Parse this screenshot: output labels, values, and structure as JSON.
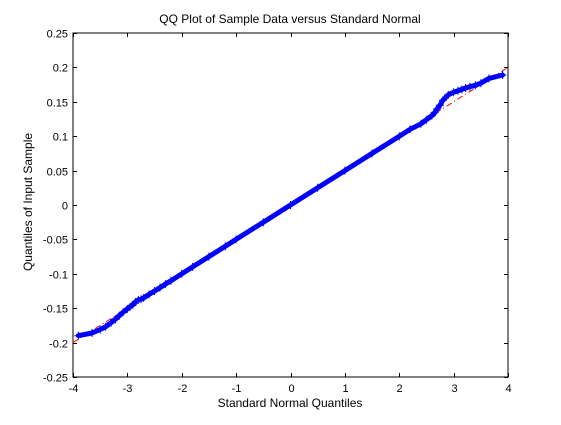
{
  "chart_data": {
    "type": "scatter",
    "title": "QQ Plot of Sample Data versus Standard Normal",
    "xlabel": "Standard Normal Quantiles",
    "ylabel": "Quantiles of Input Sample",
    "xlim": [
      -4,
      4
    ],
    "ylim": [
      -0.25,
      0.25
    ],
    "xticks": [
      -4,
      -3,
      -2,
      -1,
      0,
      1,
      2,
      3,
      4
    ],
    "xtick_labels": [
      "-4",
      "-3",
      "-2",
      "-1",
      "0",
      "1",
      "2",
      "3",
      "4"
    ],
    "yticks": [
      -0.25,
      -0.2,
      -0.15,
      -0.1,
      -0.05,
      0,
      0.05,
      0.1,
      0.15,
      0.2,
      0.25
    ],
    "ytick_labels": [
      "-0.25",
      "-0.2",
      "-0.15",
      "-0.1",
      "-0.05",
      "0",
      "0.05",
      "0.1",
      "0.15",
      "0.2",
      "0.25"
    ],
    "grid": false,
    "legend": "none",
    "marker": "+",
    "colors": {
      "points": "#0000ff",
      "reference_line": "#ff0000",
      "axes": "#000000"
    },
    "reference_line": {
      "style": "dash-dot",
      "x": [
        -4,
        4
      ],
      "y": [
        -0.2,
        0.2
      ]
    },
    "series": [
      {
        "x": [
          -3.9,
          -3.65,
          -3.5,
          -3.4,
          -3.3,
          -3.22,
          -3.15,
          -3.08,
          -3.0,
          -2.95,
          -2.9,
          -2.85,
          -2.8,
          -2.75,
          -2.7,
          -2.6,
          -2.5,
          -2.4,
          -2.3,
          -2.2,
          -2.0,
          -1.8,
          -1.5,
          -1.2,
          -1.0,
          -0.5,
          0,
          0.5,
          1.0,
          1.5,
          2.0,
          2.2,
          2.4,
          2.5,
          2.6,
          2.65,
          2.7,
          2.75,
          2.8,
          2.9,
          3.0,
          3.08,
          3.15,
          3.22,
          3.3,
          3.4,
          3.5,
          3.65,
          3.9
        ],
        "y": [
          -0.19,
          -0.186,
          -0.181,
          -0.177,
          -0.171,
          -0.166,
          -0.161,
          -0.156,
          -0.151,
          -0.148,
          -0.145,
          -0.141,
          -0.138,
          -0.137,
          -0.135,
          -0.13,
          -0.125,
          -0.12,
          -0.115,
          -0.11,
          -0.1,
          -0.09,
          -0.075,
          -0.06,
          -0.05,
          -0.025,
          0,
          0.025,
          0.05,
          0.075,
          0.1,
          0.11,
          0.118,
          0.124,
          0.13,
          0.134,
          0.14,
          0.145,
          0.152,
          0.16,
          0.164,
          0.166,
          0.168,
          0.17,
          0.172,
          0.174,
          0.177,
          0.184,
          0.189
        ]
      }
    ]
  }
}
